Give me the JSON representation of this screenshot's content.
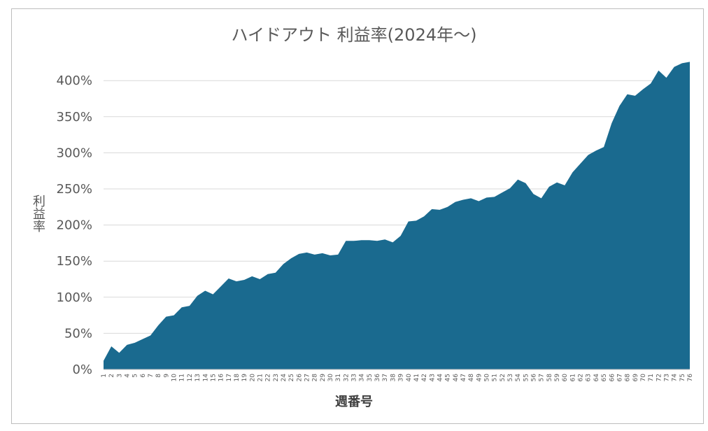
{
  "chart_data": {
    "type": "area",
    "title": "ハイドアウト 利益率(2024年〜)",
    "xlabel": "週番号",
    "ylabel": "利益率",
    "y_ticks": [
      "0%",
      "50%",
      "100%",
      "150%",
      "200%",
      "250%",
      "300%",
      "350%",
      "400%"
    ],
    "ylim": [
      0,
      4.15
    ],
    "grid": true,
    "legend": "none",
    "colors": {
      "area": "#1a6a8f",
      "grid": "#d9d9d9",
      "axis": "#595959"
    },
    "x": [
      1,
      2,
      3,
      4,
      5,
      6,
      7,
      8,
      9,
      10,
      11,
      12,
      13,
      14,
      15,
      16,
      17,
      18,
      19,
      20,
      21,
      22,
      23,
      24,
      25,
      26,
      27,
      28,
      29,
      30,
      31,
      32,
      33,
      34,
      35,
      36,
      37,
      38,
      39,
      40,
      41,
      42,
      43,
      44,
      45,
      46,
      47,
      48,
      49,
      50,
      51,
      52,
      53,
      54,
      55,
      56,
      57,
      58,
      59,
      60,
      61,
      62,
      63,
      64,
      65,
      66,
      67,
      68,
      69,
      70,
      71,
      72,
      73,
      74,
      75,
      76
    ],
    "values": [
      0.12,
      0.32,
      0.23,
      0.34,
      0.37,
      0.42,
      0.47,
      0.61,
      0.73,
      0.75,
      0.86,
      0.88,
      1.02,
      1.09,
      1.04,
      1.15,
      1.26,
      1.22,
      1.24,
      1.29,
      1.25,
      1.32,
      1.34,
      1.46,
      1.54,
      1.6,
      1.62,
      1.59,
      1.61,
      1.58,
      1.59,
      1.78,
      1.78,
      1.79,
      1.79,
      1.78,
      1.8,
      1.76,
      1.85,
      2.05,
      2.06,
      2.12,
      2.22,
      2.21,
      2.25,
      2.32,
      2.35,
      2.37,
      2.33,
      2.38,
      2.39,
      2.45,
      2.51,
      2.63,
      2.58,
      2.43,
      2.37,
      2.53,
      2.59,
      2.55,
      2.73,
      2.85,
      2.97,
      3.03,
      3.08,
      3.41,
      3.65,
      3.81,
      3.79,
      3.88,
      3.96,
      4.14,
      4.04,
      4.19,
      4.24,
      4.26
    ]
  }
}
